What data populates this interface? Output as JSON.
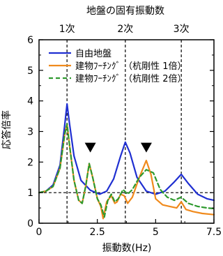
{
  "chart_data": {
    "type": "line",
    "title": "",
    "top_axis_label": "地盤の固有振動数",
    "xlabel": "振動数(Hz)",
    "ylabel": "応答倍率",
    "xlim": [
      0,
      7.5
    ],
    "ylim": [
      0,
      6
    ],
    "x_ticks": [
      "0",
      "2.5",
      "5",
      "7.5"
    ],
    "y_ticks": [
      "0",
      "1",
      "2",
      "3",
      "4",
      "5",
      "6"
    ],
    "grid": false,
    "legend_position": "top-left",
    "reference_line": {
      "y": 1,
      "style": "dashed"
    },
    "modes": [
      {
        "label": "1次",
        "x": 1.2
      },
      {
        "label": "2次",
        "x": 3.7
      },
      {
        "label": "3次",
        "x": 6.1
      }
    ],
    "markers": [
      {
        "shape": "down-triangle",
        "x": 2.2,
        "y": 2.45
      },
      {
        "shape": "down-triangle",
        "x": 4.6,
        "y": 2.45
      }
    ],
    "series": [
      {
        "name": "自由地盤",
        "color": "#1f2fd1",
        "style": "solid",
        "points": [
          [
            0,
            1.0
          ],
          [
            0.3,
            1.05
          ],
          [
            0.6,
            1.25
          ],
          [
            0.9,
            1.9
          ],
          [
            1.1,
            3.2
          ],
          [
            1.2,
            3.9
          ],
          [
            1.3,
            3.3
          ],
          [
            1.5,
            2.2
          ],
          [
            1.8,
            1.4
          ],
          [
            2.2,
            1.08
          ],
          [
            2.6,
            0.95
          ],
          [
            2.9,
            1.05
          ],
          [
            3.2,
            1.45
          ],
          [
            3.5,
            2.2
          ],
          [
            3.7,
            2.65
          ],
          [
            3.9,
            2.3
          ],
          [
            4.2,
            1.5
          ],
          [
            4.6,
            1.05
          ],
          [
            5.0,
            0.95
          ],
          [
            5.4,
            1.05
          ],
          [
            5.8,
            1.35
          ],
          [
            6.1,
            1.6
          ],
          [
            6.4,
            1.3
          ],
          [
            6.8,
            0.95
          ],
          [
            7.2,
            0.8
          ],
          [
            7.5,
            0.75
          ]
        ]
      },
      {
        "name": "建物ﾌｰﾁﾝｸﾞ （杭剛性 1倍）",
        "color": "#f08a1c",
        "style": "solid",
        "points": [
          [
            0,
            1.0
          ],
          [
            0.3,
            1.05
          ],
          [
            0.6,
            1.2
          ],
          [
            0.9,
            1.8
          ],
          [
            1.1,
            2.9
          ],
          [
            1.2,
            3.25
          ],
          [
            1.3,
            2.6
          ],
          [
            1.5,
            1.4
          ],
          [
            1.7,
            0.75
          ],
          [
            1.85,
            0.65
          ],
          [
            2.0,
            1.2
          ],
          [
            2.15,
            1.95
          ],
          [
            2.3,
            1.5
          ],
          [
            2.5,
            0.8
          ],
          [
            2.65,
            0.55
          ],
          [
            2.75,
            0.15
          ],
          [
            2.9,
            0.7
          ],
          [
            3.1,
            0.9
          ],
          [
            3.25,
            0.65
          ],
          [
            3.35,
            0.7
          ],
          [
            3.5,
            0.95
          ],
          [
            3.65,
            0.9
          ],
          [
            3.8,
            0.65
          ],
          [
            4.0,
            0.85
          ],
          [
            4.3,
            1.5
          ],
          [
            4.6,
            2.05
          ],
          [
            4.8,
            1.6
          ],
          [
            5.0,
            0.8
          ],
          [
            5.3,
            0.6
          ],
          [
            5.6,
            0.55
          ],
          [
            5.9,
            0.5
          ],
          [
            6.1,
            0.7
          ],
          [
            6.3,
            0.45
          ],
          [
            6.6,
            0.38
          ],
          [
            7.0,
            0.32
          ],
          [
            7.5,
            0.28
          ]
        ]
      },
      {
        "name": "建物ﾌｰﾁﾝｸﾞ （杭剛性 2倍）",
        "color": "#2e9a2e",
        "style": "dashed",
        "points": [
          [
            0,
            1.0
          ],
          [
            0.3,
            1.05
          ],
          [
            0.6,
            1.2
          ],
          [
            0.9,
            1.8
          ],
          [
            1.1,
            2.9
          ],
          [
            1.2,
            3.25
          ],
          [
            1.3,
            2.6
          ],
          [
            1.5,
            1.4
          ],
          [
            1.7,
            0.75
          ],
          [
            1.85,
            0.65
          ],
          [
            2.0,
            1.2
          ],
          [
            2.15,
            1.95
          ],
          [
            2.3,
            1.5
          ],
          [
            2.5,
            0.8
          ],
          [
            2.65,
            0.6
          ],
          [
            2.8,
            0.2
          ],
          [
            2.95,
            0.75
          ],
          [
            3.1,
            0.95
          ],
          [
            3.25,
            0.7
          ],
          [
            3.4,
            0.8
          ],
          [
            3.6,
            1.1
          ],
          [
            3.8,
            0.95
          ],
          [
            4.0,
            1.1
          ],
          [
            4.3,
            1.5
          ],
          [
            4.6,
            1.75
          ],
          [
            4.9,
            1.65
          ],
          [
            5.2,
            1.1
          ],
          [
            5.5,
            0.85
          ],
          [
            5.8,
            0.75
          ],
          [
            6.1,
            0.85
          ],
          [
            6.4,
            0.65
          ],
          [
            6.8,
            0.55
          ],
          [
            7.2,
            0.5
          ],
          [
            7.5,
            0.48
          ]
        ]
      }
    ]
  }
}
